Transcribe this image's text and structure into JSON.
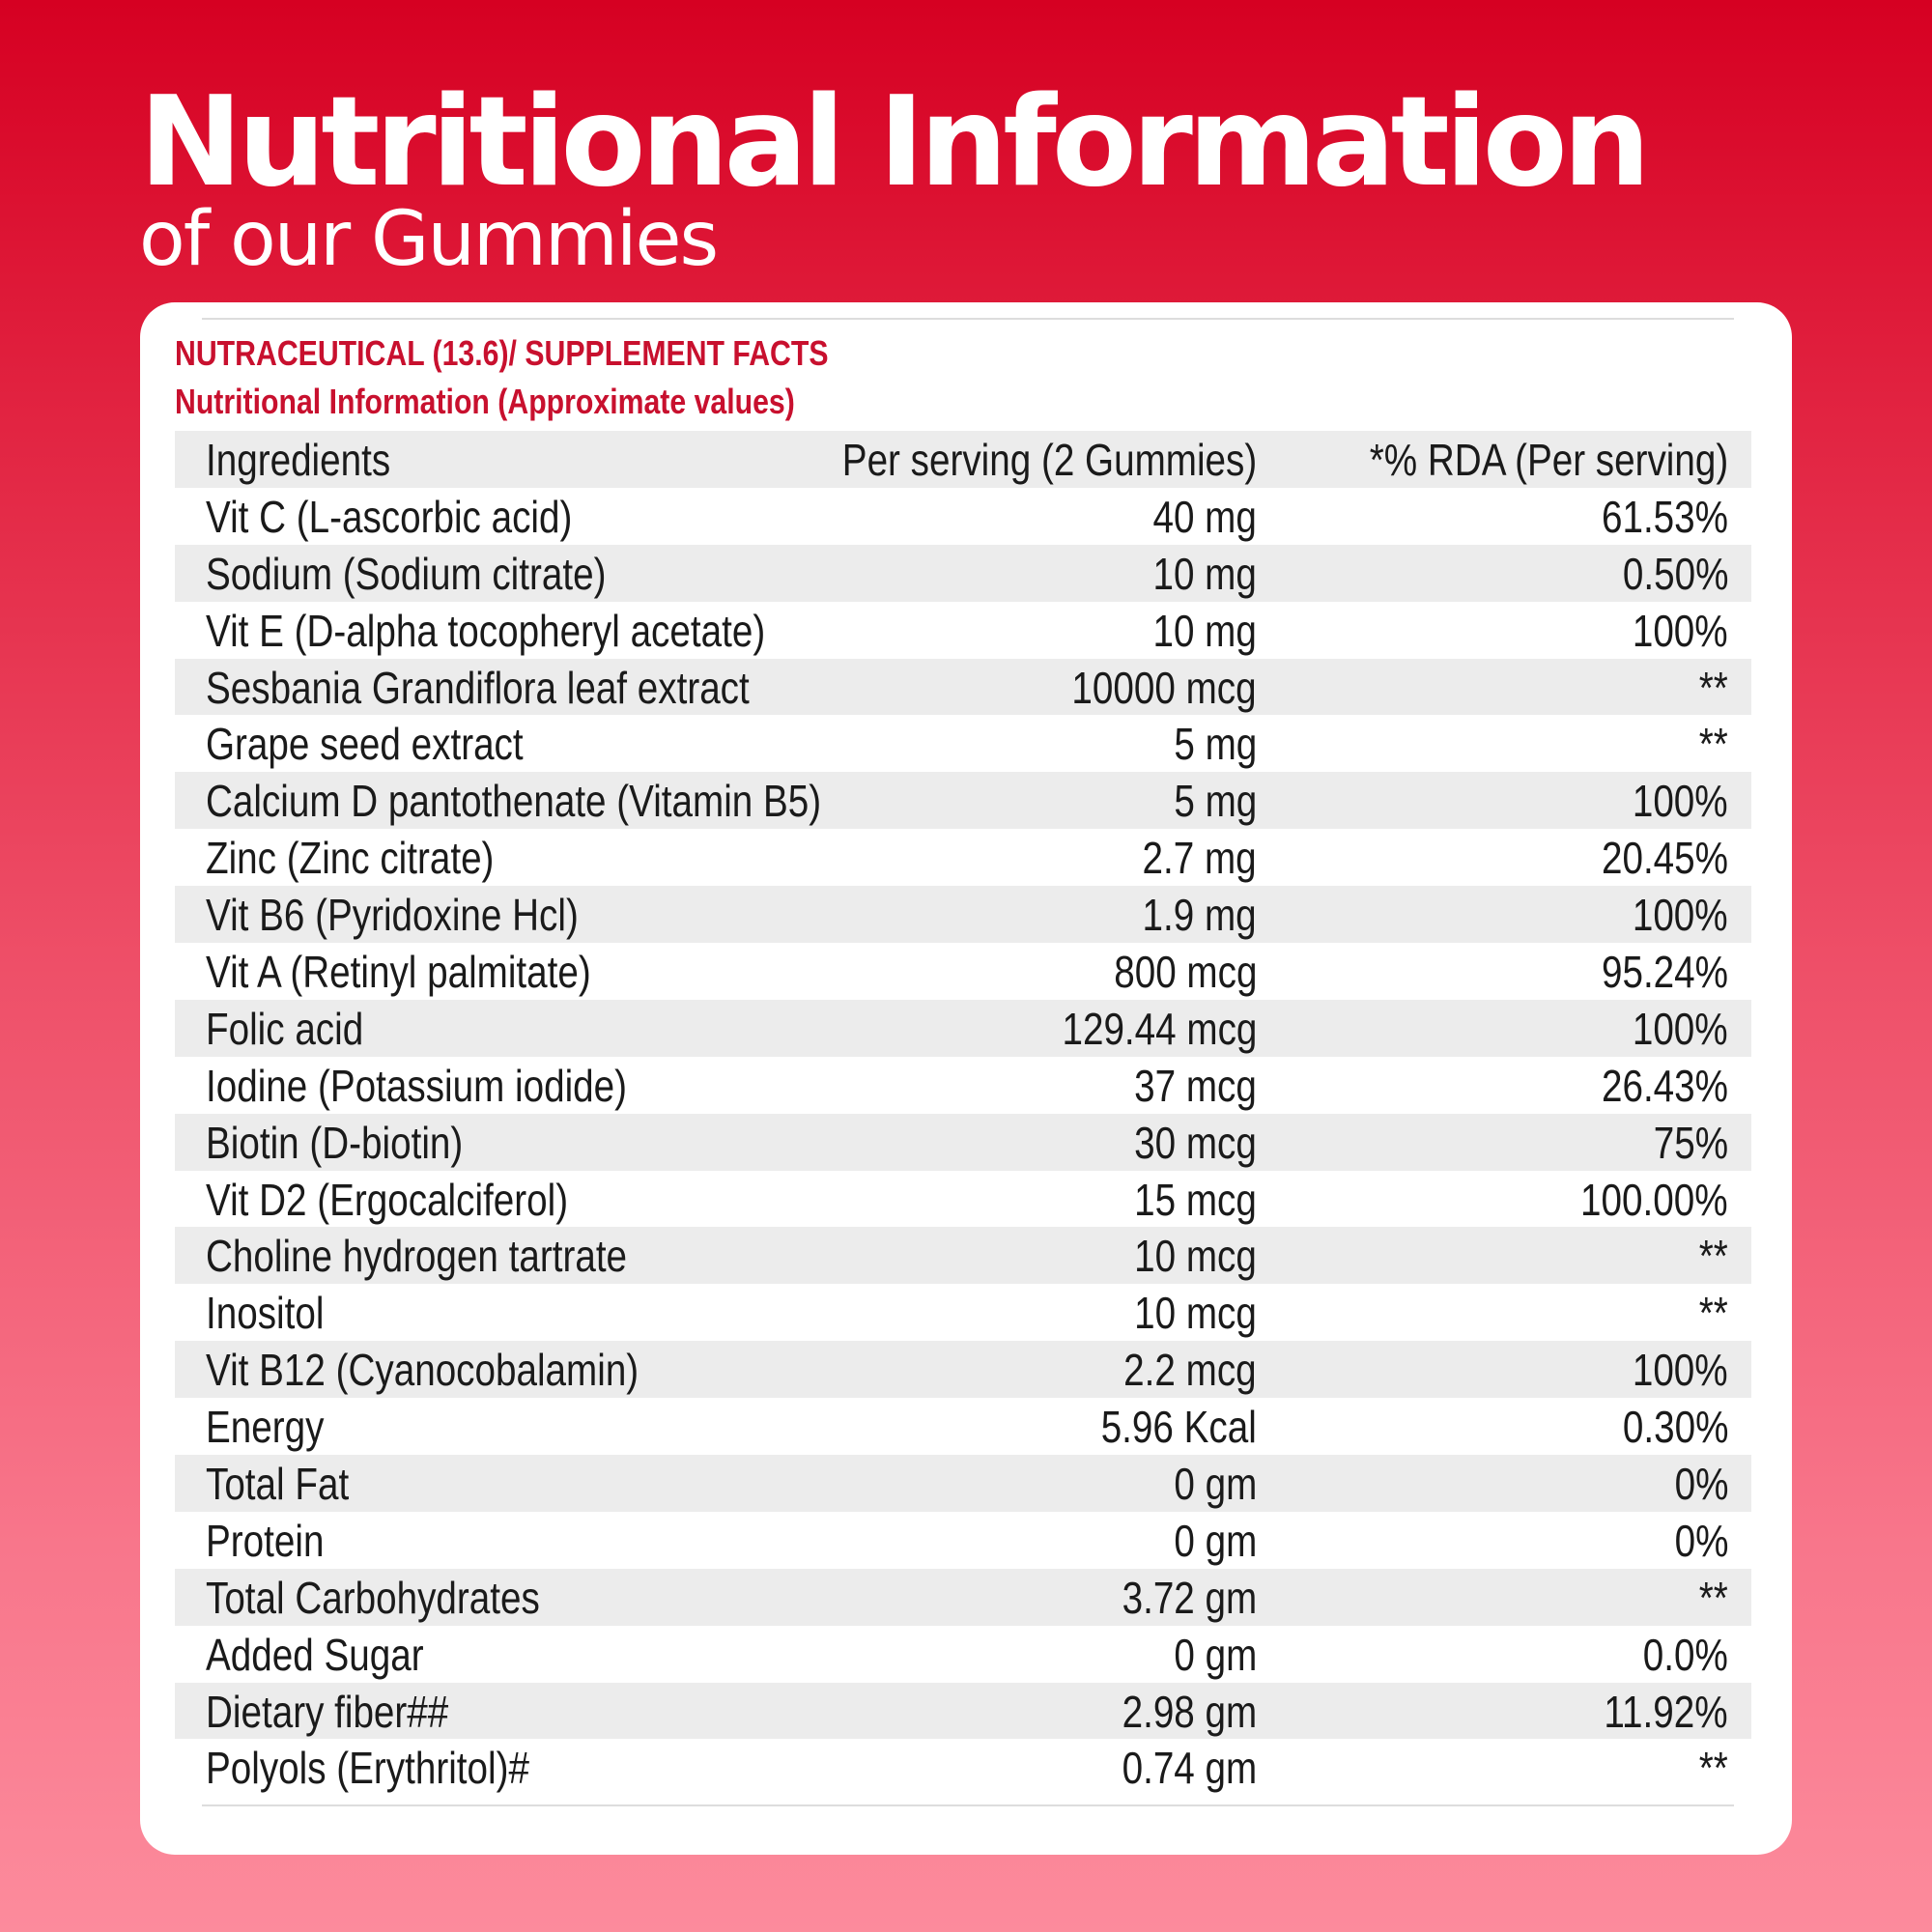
{
  "header": {
    "title": "Nutritional Information",
    "subtitle": "of our Gummies"
  },
  "panel": {
    "heading": "NUTRACEUTICAL (13.6)/ SUPPLEMENT FACTS",
    "subheading": "Nutritional Information (Approximate values)"
  },
  "table": {
    "columns": [
      "Ingredients",
      "Per serving (2 Gummies)",
      "*% RDA (Per serving)"
    ],
    "rows": [
      [
        "Vit C (L-ascorbic acid)",
        "40 mg",
        "61.53%"
      ],
      [
        "Sodium (Sodium citrate)",
        "10 mg",
        "0.50%"
      ],
      [
        "Vit E (D-alpha tocopheryl acetate)",
        "10 mg",
        "100%"
      ],
      [
        "Sesbania Grandiflora leaf extract",
        "10000 mcg",
        "**"
      ],
      [
        "Grape seed extract",
        "5 mg",
        "**"
      ],
      [
        "Calcium D pantothenate (Vitamin B5)",
        "5 mg",
        "100%"
      ],
      [
        "Zinc (Zinc citrate)",
        "2.7 mg",
        "20.45%"
      ],
      [
        "Vit B6 (Pyridoxine Hcl)",
        "1.9 mg",
        "100%"
      ],
      [
        "Vit A (Retinyl palmitate)",
        "800 mcg",
        "95.24%"
      ],
      [
        "Folic acid",
        "129.44 mcg",
        "100%"
      ],
      [
        "Iodine (Potassium iodide)",
        "37 mcg",
        "26.43%"
      ],
      [
        "Biotin (D-biotin)",
        "30 mcg",
        "75%"
      ],
      [
        "Vit D2 (Ergocalciferol)",
        "15 mcg",
        "100.00%"
      ],
      [
        "Choline hydrogen tartrate",
        "10 mcg",
        "**"
      ],
      [
        "Inositol",
        "10 mcg",
        "**"
      ],
      [
        "Vit B12 (Cyanocobalamin)",
        "2.2 mcg",
        "100%"
      ],
      [
        "Energy",
        "5.96 Kcal",
        "0.30%"
      ],
      [
        "Total Fat",
        "0 gm",
        "0%"
      ],
      [
        "Protein",
        "0 gm",
        "0%"
      ],
      [
        "Total Carbohydrates",
        "3.72 gm",
        "**"
      ],
      [
        "Added Sugar",
        "0 gm",
        "0.0%"
      ],
      [
        "Dietary fiber##",
        "2.98 gm",
        "11.92%"
      ],
      [
        "Polyols (Erythritol)#",
        "0.74 gm",
        "**"
      ]
    ]
  }
}
